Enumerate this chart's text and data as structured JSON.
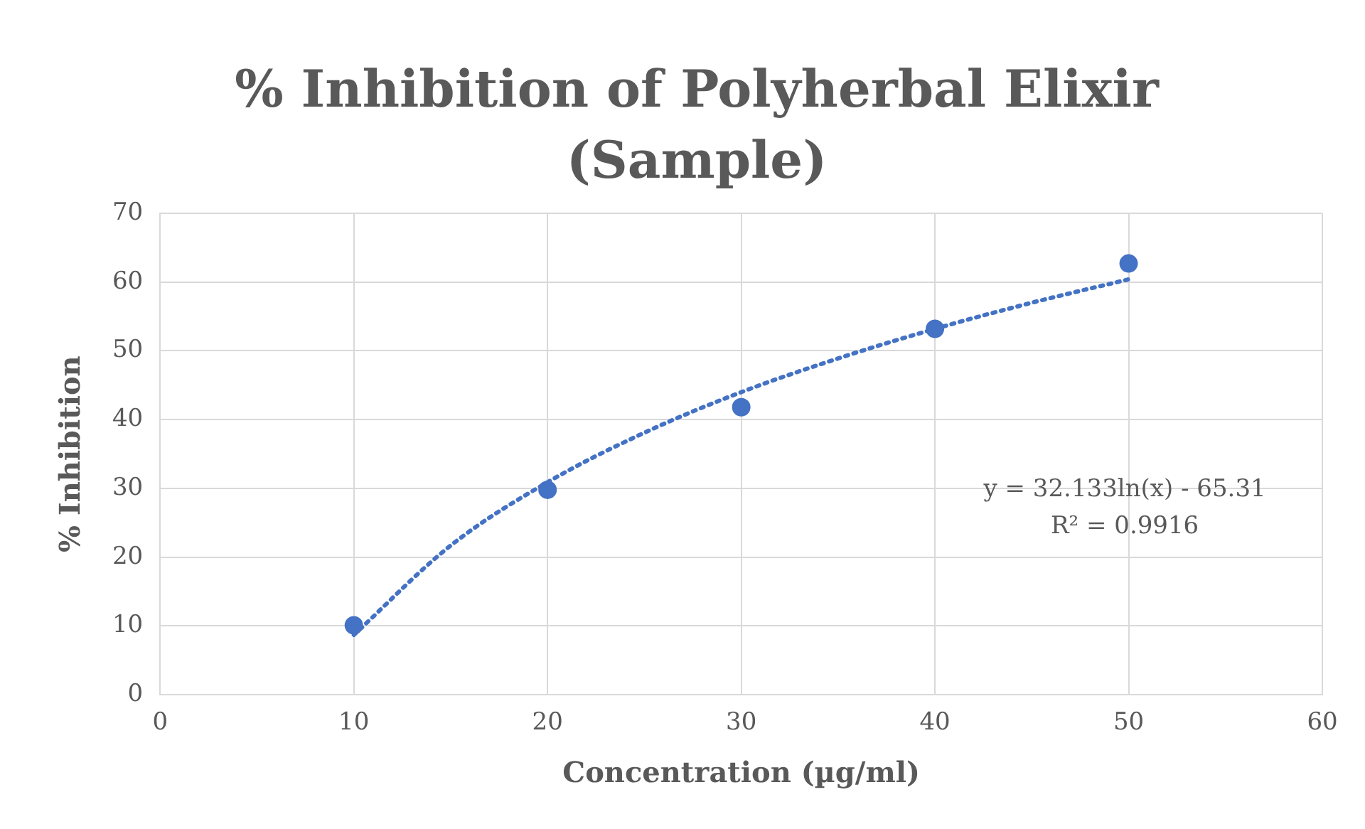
{
  "chart_data": {
    "type": "scatter",
    "title": "% Inhibition of Polyherbal Elixir (Sample)",
    "xlabel": "Concentration (µg/ml)",
    "ylabel": "% Inhibition",
    "x": [
      10,
      20,
      30,
      40,
      50
    ],
    "series": [
      {
        "type": "scatter",
        "color": "#4472c4",
        "marker": "circle",
        "values": [
          10.1,
          29.8,
          41.8,
          53.2,
          62.7
        ]
      },
      {
        "type": "line",
        "color": "#4472c4",
        "marker": "none",
        "line_style": "dotted",
        "x": [
          10,
          15,
          20,
          25,
          30,
          35,
          40,
          45,
          50
        ],
        "values": [
          8.7,
          21.7,
          30.9,
          38.1,
          44.0,
          48.9,
          53.2,
          57.0,
          60.4
        ]
      }
    ],
    "annotations": [
      "y = 32.133ln(x) - 65.31",
      "R² = 0.9916"
    ],
    "xlim": [
      0,
      60
    ],
    "xticks": [
      0,
      10,
      20,
      30,
      40,
      50,
      60
    ],
    "ylim": [
      0,
      70
    ],
    "yticks": [
      0,
      10,
      20,
      30,
      40,
      50,
      60,
      70
    ],
    "grid": true,
    "legend": false
  }
}
